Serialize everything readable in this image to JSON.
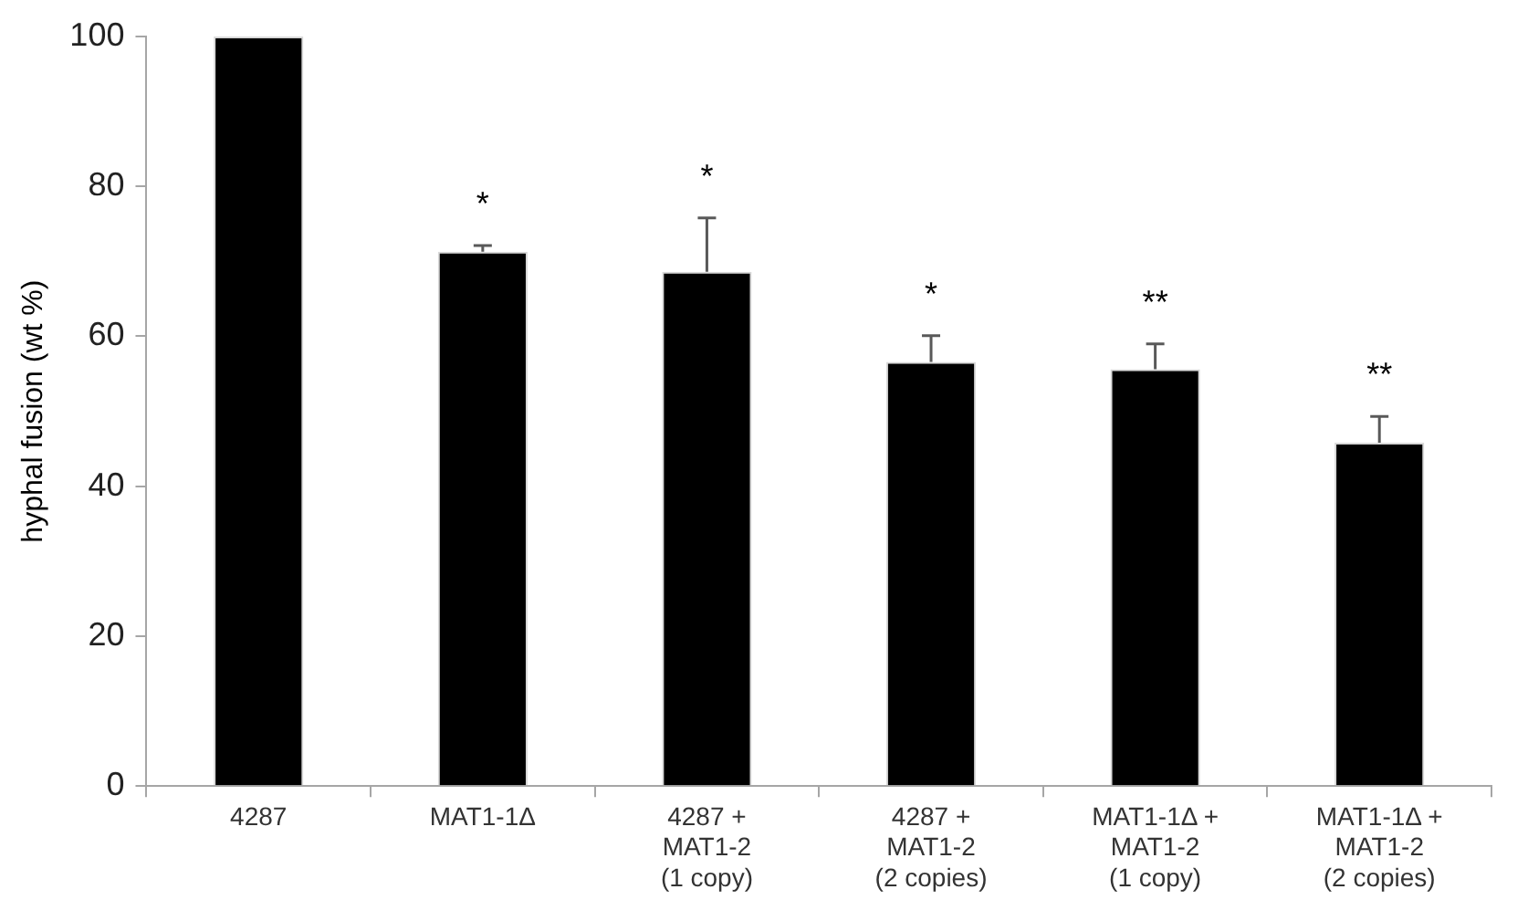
{
  "chart_data": {
    "type": "bar",
    "ylabel": "hyphal fusion (wt %)",
    "categories": [
      "4287",
      "MAT1-1Δ",
      "4287 +\nMAT1-2\n(1 copy)",
      "4287 +\nMAT1-2\n(2 copies)",
      "MAT1-1Δ +\nMAT1-2\n(1 copy)",
      "MAT1-1Δ +\nMAT1-2\n(2 copies)"
    ],
    "values": [
      100,
      71.3,
      68.6,
      56.6,
      55.6,
      45.8
    ],
    "errors": [
      null,
      [
        71.3,
        72.1
      ],
      [
        68.6,
        75.8
      ],
      [
        56.6,
        60.1
      ],
      [
        55.6,
        59
      ],
      [
        45.8,
        49.3
      ]
    ],
    "color": "#000000",
    "ylim": [
      0,
      100
    ],
    "yticks": [
      0,
      20,
      40,
      60,
      80,
      100
    ],
    "grid": false,
    "legend": false,
    "annotations": [
      "*",
      "*",
      "*",
      "**",
      "**"
    ]
  }
}
